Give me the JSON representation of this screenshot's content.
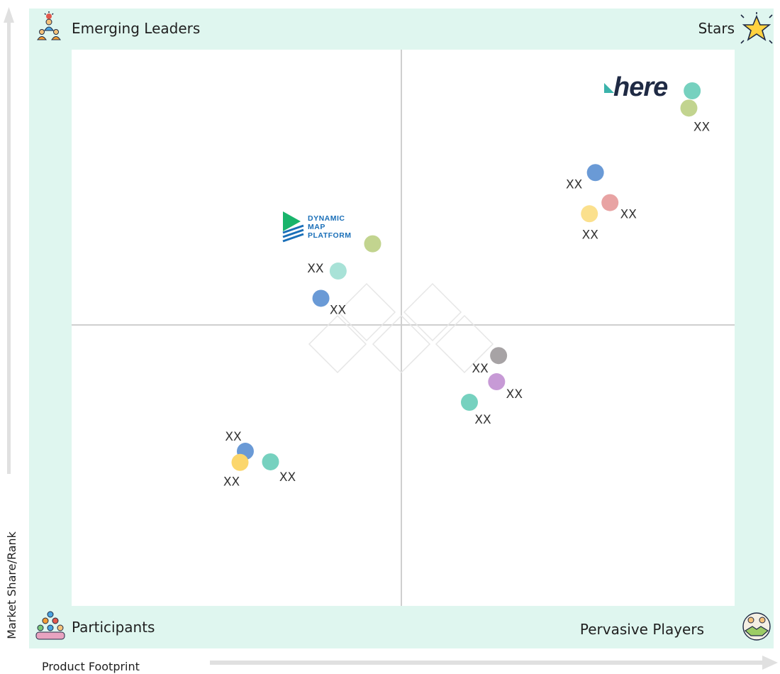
{
  "chart_data": {
    "type": "scatter",
    "quadrants": {
      "top_left": "Emerging Leaders",
      "top_right": "Stars",
      "bottom_left": "Participants",
      "bottom_right": "Pervasive Players"
    },
    "xlabel": "Product Footprint",
    "ylabel": "Market Share/Rank",
    "xlim": [
      0,
      100
    ],
    "ylim": [
      0,
      100
    ],
    "icons": {
      "top_left": "team-leader-icon",
      "top_right": "star-icon",
      "bottom_left": "group-icon",
      "bottom_right": "handshake-icon"
    },
    "points": [
      {
        "x": 93.6,
        "y": 92.6,
        "color": "#76d1bf",
        "label": ""
      },
      {
        "x": 93.1,
        "y": 89.5,
        "color": "#c2d48f",
        "label": "XX"
      },
      {
        "x": 79.0,
        "y": 77.9,
        "color": "#6a9ad6",
        "label": "XX"
      },
      {
        "x": 81.2,
        "y": 72.5,
        "color": "#e8a3a3",
        "label": "XX"
      },
      {
        "x": 78.1,
        "y": 70.5,
        "color": "#fbe08d",
        "label": "XX"
      },
      {
        "x": 45.4,
        "y": 65.1,
        "color": "#c2d48f",
        "label": ""
      },
      {
        "x": 40.2,
        "y": 60.2,
        "color": "#a8e2d7",
        "label": "XX"
      },
      {
        "x": 37.6,
        "y": 55.3,
        "color": "#6a9ad6",
        "label": "XX"
      },
      {
        "x": 64.4,
        "y": 45.0,
        "color": "#a7a3a5",
        "label": "XX"
      },
      {
        "x": 64.1,
        "y": 40.3,
        "color": "#c79ad6",
        "label": "XX"
      },
      {
        "x": 60.0,
        "y": 36.6,
        "color": "#76d1bf",
        "label": "XX"
      },
      {
        "x": 26.2,
        "y": 27.8,
        "color": "#6a9ad6",
        "label": "XX"
      },
      {
        "x": 25.4,
        "y": 25.8,
        "color": "#fbd66c",
        "label": "XX"
      },
      {
        "x": 30.0,
        "y": 25.9,
        "color": "#76d1bf",
        "label": "XX"
      }
    ],
    "logos": {
      "dynamic_map_platform": [
        "DYNAMIC",
        "MAP",
        "PLATFORM"
      ],
      "here": "here"
    }
  },
  "colors": {
    "frame": "#dff6ef",
    "plot": "#ffffff",
    "grid": "#cfcfcf",
    "axis_arrow": "#e0e0e0",
    "dmp_blue": "#1a6fb8",
    "dmp_green": "#19b46b",
    "here_teal": "#3bb3ab",
    "here_text": "#1f2a44"
  }
}
